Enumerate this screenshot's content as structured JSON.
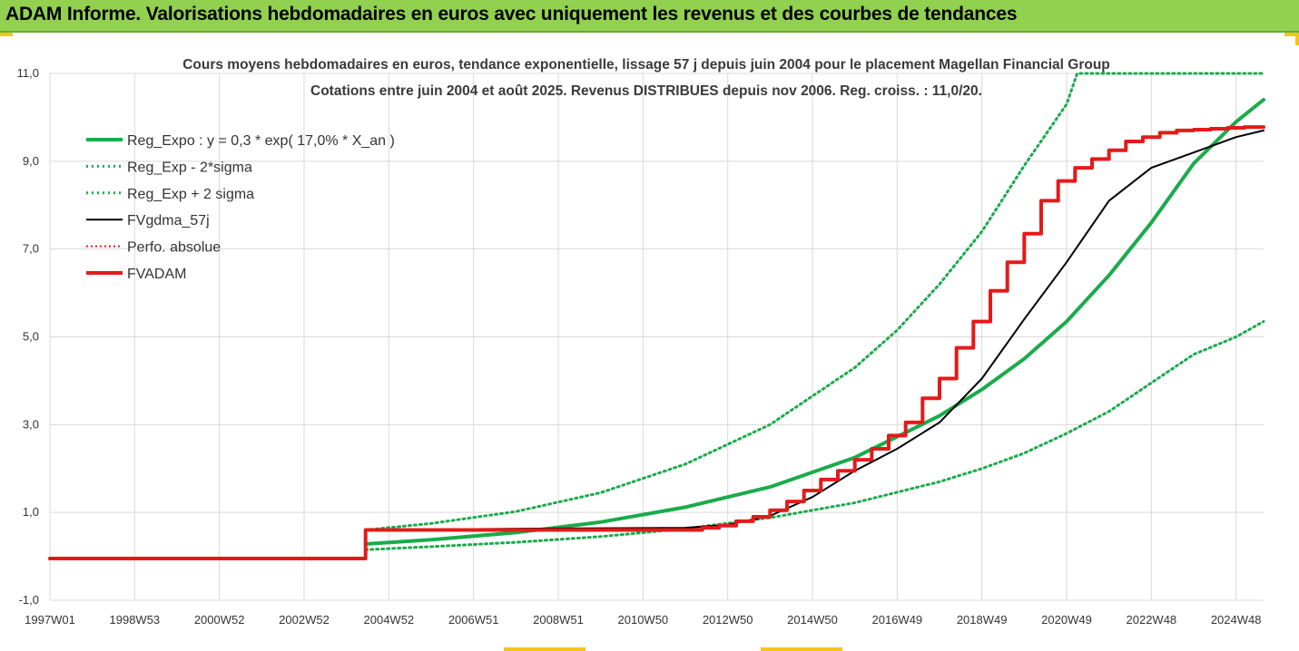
{
  "header": {
    "title": "ADAM Informe. Valorisations hebdomadaires en euros avec uniquement les revenus et des courbes de tendances"
  },
  "colors": {
    "banner": "#92d050",
    "reg_green": "#1aab4b",
    "dotted_green": "#1aab4b",
    "fv_black": "#000000",
    "fvadam_red": "#e41a1a",
    "perfo_red": "#e41a1a"
  },
  "chart_data": {
    "type": "line",
    "title_line1": "Cours moyens hebdomadaires en euros, tendance exponentielle, lissage 57 j depuis juin 2004 pour le placement  Magellan Financial Group",
    "title_line2": "Cotations entre juin 2004 et août 2025. Revenus DISTRIBUES depuis nov 2006. Reg. croiss. : 11,0/20.",
    "ylim": [
      -1,
      11
    ],
    "xlim": [
      1997.0,
      2025.65
    ],
    "grid": true,
    "legend_position": "top-left",
    "y_ticks": [
      "-1,0",
      "1,0",
      "3,0",
      "5,0",
      "7,0",
      "9,0",
      "11,0"
    ],
    "y_tick_values": [
      -1,
      1,
      3,
      5,
      7,
      9,
      11
    ],
    "x_ticks": [
      "1997W01",
      "1998W53",
      "2000W52",
      "2002W52",
      "2004W52",
      "2006W51",
      "2008W51",
      "2010W50",
      "2012W50",
      "2014W50",
      "2016W49",
      "2018W49",
      "2020W49",
      "2022W48",
      "2024W48"
    ],
    "x_tick_values": [
      1997.0,
      1999.0,
      2001.0,
      2003.0,
      2005.0,
      2007.0,
      2009.0,
      2011.0,
      2013.0,
      2015.0,
      2017.0,
      2019.0,
      2021.0,
      2023.0,
      2025.0
    ],
    "series": [
      {
        "name": "Reg_Expo : y = 0,3 * exp( 17,0% *  X_an )",
        "style": "solid-green",
        "x": [
          2004.45,
          2006,
          2008,
          2010,
          2012,
          2014,
          2016,
          2018,
          2019,
          2020,
          2021,
          2022,
          2023,
          2024,
          2025,
          2025.65
        ],
        "y": [
          0.28,
          0.38,
          0.54,
          0.78,
          1.12,
          1.58,
          2.25,
          3.2,
          3.8,
          4.5,
          5.35,
          6.4,
          7.6,
          8.95,
          9.9,
          10.4
        ]
      },
      {
        "name": "Reg_Exp - 2*sigma",
        "style": "dotted-green",
        "x": [
          2004.45,
          2006,
          2008,
          2010,
          2012,
          2014,
          2016,
          2018,
          2019,
          2020,
          2021,
          2022,
          2023,
          2024,
          2025,
          2025.65
        ],
        "y": [
          0.15,
          0.22,
          0.32,
          0.45,
          0.63,
          0.88,
          1.22,
          1.7,
          2.0,
          2.35,
          2.8,
          3.3,
          3.95,
          4.6,
          5.0,
          5.35
        ]
      },
      {
        "name": "Reg_Exp + 2 sigma",
        "style": "dotted-green",
        "x": [
          2004.45,
          2006,
          2008,
          2010,
          2012,
          2014,
          2016,
          2017,
          2018,
          2019,
          2020,
          2021,
          2021.25,
          2023.55,
          2025.65
        ],
        "y": [
          0.6,
          0.75,
          1.02,
          1.45,
          2.1,
          3.0,
          4.3,
          5.15,
          6.2,
          7.4,
          8.9,
          10.3,
          11.0,
          11.0,
          11.0
        ]
      },
      {
        "name": "FVgdma_57j",
        "style": "solid-black",
        "x": [
          1997.0,
          2004.45,
          2004.45,
          2008,
          2012,
          2013,
          2014,
          2015,
          2016,
          2017,
          2018,
          2019,
          2020,
          2021,
          2022,
          2023,
          2024,
          2025,
          2025.65
        ],
        "y": [
          -0.05,
          -0.05,
          0.6,
          0.63,
          0.65,
          0.72,
          0.92,
          1.35,
          1.95,
          2.45,
          3.05,
          4.05,
          5.4,
          6.7,
          8.1,
          8.85,
          9.2,
          9.55,
          9.7
        ]
      },
      {
        "name": "Perfo. absolue",
        "style": "dotted-red",
        "x": [
          1997.0,
          2004.45,
          2004.45,
          2025.65
        ],
        "y": [
          -0.05,
          -0.05,
          0.6,
          0.6
        ]
      },
      {
        "name": "FVADAM",
        "style": "solid-red-step",
        "x": [
          1997.0,
          2004.45,
          2004.45,
          2012.4,
          2012.4,
          2012.8,
          2012.8,
          2013.2,
          2013.2,
          2013.6,
          2013.6,
          2014.0,
          2014.0,
          2014.4,
          2014.4,
          2014.8,
          2014.8,
          2015.2,
          2015.2,
          2015.6,
          2015.6,
          2016.0,
          2016.0,
          2016.4,
          2016.4,
          2016.8,
          2016.8,
          2017.2,
          2017.2,
          2017.6,
          2017.6,
          2018.0,
          2018.0,
          2018.4,
          2018.4,
          2018.8,
          2018.8,
          2019.2,
          2019.2,
          2019.6,
          2019.6,
          2020.0,
          2020.0,
          2020.4,
          2020.4,
          2020.8,
          2020.8,
          2021.2,
          2021.2,
          2021.6,
          2021.6,
          2022.0,
          2022.0,
          2022.4,
          2022.4,
          2022.8,
          2022.8,
          2023.2,
          2023.2,
          2023.6,
          2023.6,
          2024.0,
          2024.0,
          2024.4,
          2024.4,
          2024.8,
          2024.8,
          2025.2,
          2025.2,
          2025.65
        ],
        "y": [
          -0.05,
          -0.05,
          0.6,
          0.6,
          0.65,
          0.65,
          0.7,
          0.7,
          0.8,
          0.8,
          0.9,
          0.9,
          1.05,
          1.05,
          1.25,
          1.25,
          1.5,
          1.5,
          1.75,
          1.75,
          1.95,
          1.95,
          2.2,
          2.2,
          2.45,
          2.45,
          2.75,
          2.75,
          3.05,
          3.05,
          3.6,
          3.6,
          4.05,
          4.05,
          4.75,
          4.75,
          5.35,
          5.35,
          6.05,
          6.05,
          6.7,
          6.7,
          7.35,
          7.35,
          8.1,
          8.1,
          8.55,
          8.55,
          8.85,
          8.85,
          9.05,
          9.05,
          9.25,
          9.25,
          9.45,
          9.45,
          9.55,
          9.55,
          9.65,
          9.65,
          9.7,
          9.7,
          9.72,
          9.72,
          9.74,
          9.74,
          9.76,
          9.76,
          9.78,
          9.78
        ]
      }
    ]
  }
}
